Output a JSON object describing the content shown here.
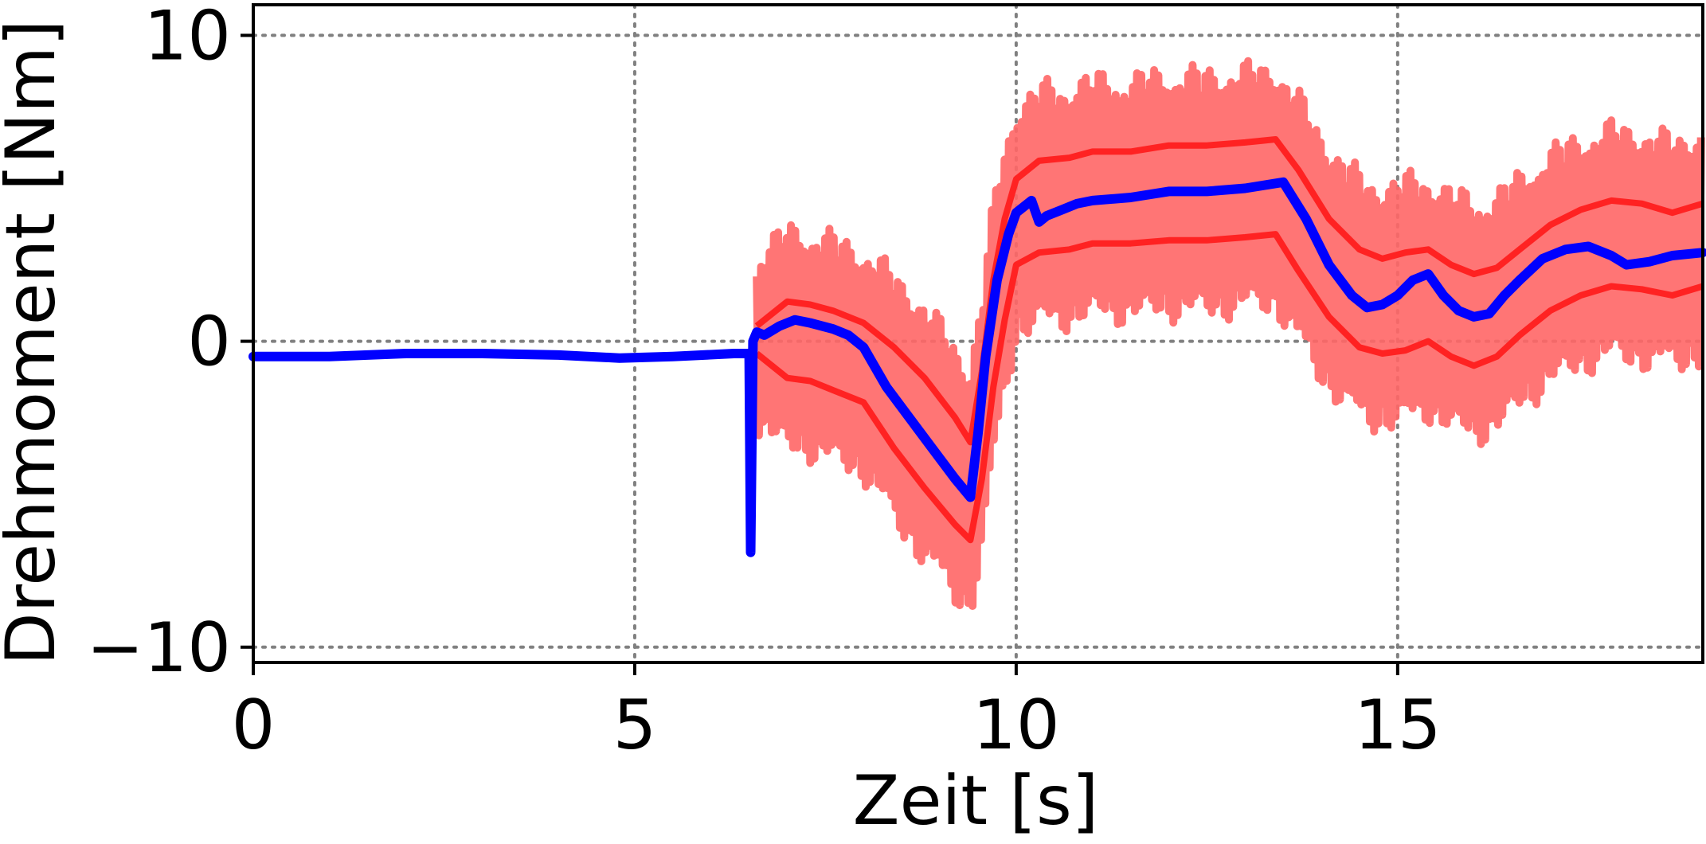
{
  "chart_data": {
    "type": "line",
    "title": "",
    "xlabel": "Zeit [s]",
    "ylabel": "Drehmoment [Nm]",
    "xlim": [
      0,
      19
    ],
    "ylim": [
      -10.5,
      11
    ],
    "xticks": [
      0,
      5,
      10,
      15
    ],
    "xtick_labels": [
      "0",
      "5",
      "10",
      "15"
    ],
    "yticks": [
      -10,
      0,
      10
    ],
    "ytick_labels": [
      "−10",
      "0",
      "10"
    ],
    "grid": true,
    "grid_style": "dotted",
    "legend": "none",
    "colors": {
      "measured": "#0000ff",
      "band_upper": "#ff2222",
      "band_lower": "#ff2222",
      "band_oscillation": "#ff6666"
    },
    "series": [
      {
        "role": "measured",
        "x": [
          0,
          1,
          2,
          3,
          4,
          4.8,
          5.5,
          6.3,
          6.5,
          6.52,
          6.55,
          6.6,
          6.7,
          6.9,
          7.1,
          7.3,
          7.6,
          7.8,
          8.0,
          8.3,
          8.6,
          8.9,
          9.2,
          9.4,
          9.5,
          9.6,
          9.75,
          9.9,
          10.0,
          10.2,
          10.3,
          10.4,
          10.6,
          10.8,
          11.0,
          11.5,
          12.0,
          12.5,
          13.0,
          13.5,
          13.8,
          14.1,
          14.4,
          14.6,
          14.8,
          15.0,
          15.2,
          15.4,
          15.6,
          15.8,
          16.0,
          16.2,
          16.4,
          16.6,
          16.9,
          17.2,
          17.5,
          17.8,
          18.0,
          18.3,
          18.6,
          19.0
        ],
        "y": [
          -0.5,
          -0.5,
          -0.4,
          -0.4,
          -0.45,
          -0.55,
          -0.5,
          -0.4,
          -0.4,
          -6.9,
          0.0,
          0.3,
          0.2,
          0.5,
          0.7,
          0.6,
          0.4,
          0.2,
          -0.2,
          -1.5,
          -2.5,
          -3.5,
          -4.5,
          -5.1,
          -3.0,
          -0.5,
          2.0,
          3.5,
          4.2,
          4.6,
          3.9,
          4.1,
          4.3,
          4.5,
          4.6,
          4.7,
          4.9,
          4.9,
          5.0,
          5.2,
          4.0,
          2.5,
          1.5,
          1.1,
          1.2,
          1.5,
          2.0,
          2.2,
          1.5,
          1.0,
          0.8,
          0.9,
          1.5,
          2.0,
          2.7,
          3.0,
          3.1,
          2.8,
          2.5,
          2.6,
          2.8,
          2.9
        ]
      },
      {
        "role": "band_upper",
        "x": [
          6.6,
          7.0,
          7.3,
          7.6,
          8.0,
          8.4,
          8.8,
          9.2,
          9.4,
          9.55,
          9.7,
          9.85,
          10.0,
          10.3,
          10.7,
          11.0,
          11.5,
          12.0,
          12.5,
          13.0,
          13.4,
          13.7,
          14.1,
          14.5,
          14.8,
          15.1,
          15.4,
          15.7,
          16.0,
          16.3,
          16.6,
          17.0,
          17.4,
          17.8,
          18.2,
          18.6,
          19.0
        ],
        "y": [
          0.5,
          1.3,
          1.2,
          1.0,
          0.6,
          -0.2,
          -1.2,
          -2.5,
          -3.3,
          -1.0,
          2.0,
          4.0,
          5.3,
          5.9,
          6.0,
          6.2,
          6.2,
          6.4,
          6.4,
          6.5,
          6.6,
          5.6,
          4.0,
          3.0,
          2.7,
          2.9,
          3.0,
          2.5,
          2.2,
          2.4,
          3.0,
          3.8,
          4.3,
          4.6,
          4.5,
          4.2,
          4.5
        ]
      },
      {
        "role": "band_lower",
        "x": [
          6.6,
          7.0,
          7.3,
          7.6,
          8.0,
          8.4,
          8.8,
          9.2,
          9.4,
          9.55,
          9.7,
          9.85,
          10.0,
          10.3,
          10.7,
          11.0,
          11.5,
          12.0,
          12.5,
          13.0,
          13.4,
          13.7,
          14.1,
          14.5,
          14.8,
          15.1,
          15.4,
          15.7,
          16.0,
          16.3,
          16.6,
          17.0,
          17.4,
          17.8,
          18.2,
          18.6,
          19.0
        ],
        "y": [
          -0.4,
          -1.2,
          -1.3,
          -1.6,
          -2.0,
          -3.5,
          -4.8,
          -6.0,
          -6.5,
          -4.5,
          -1.5,
          0.7,
          2.5,
          2.9,
          3.0,
          3.2,
          3.2,
          3.3,
          3.3,
          3.4,
          3.5,
          2.3,
          0.8,
          -0.2,
          -0.4,
          -0.3,
          0.0,
          -0.5,
          -0.8,
          -0.5,
          0.2,
          1.0,
          1.5,
          1.8,
          1.7,
          1.5,
          1.8
        ]
      },
      {
        "role": "band_oscillation",
        "amplitude_nm": 2.7,
        "x_start": 6.6,
        "x_end": 19.0
      }
    ]
  }
}
